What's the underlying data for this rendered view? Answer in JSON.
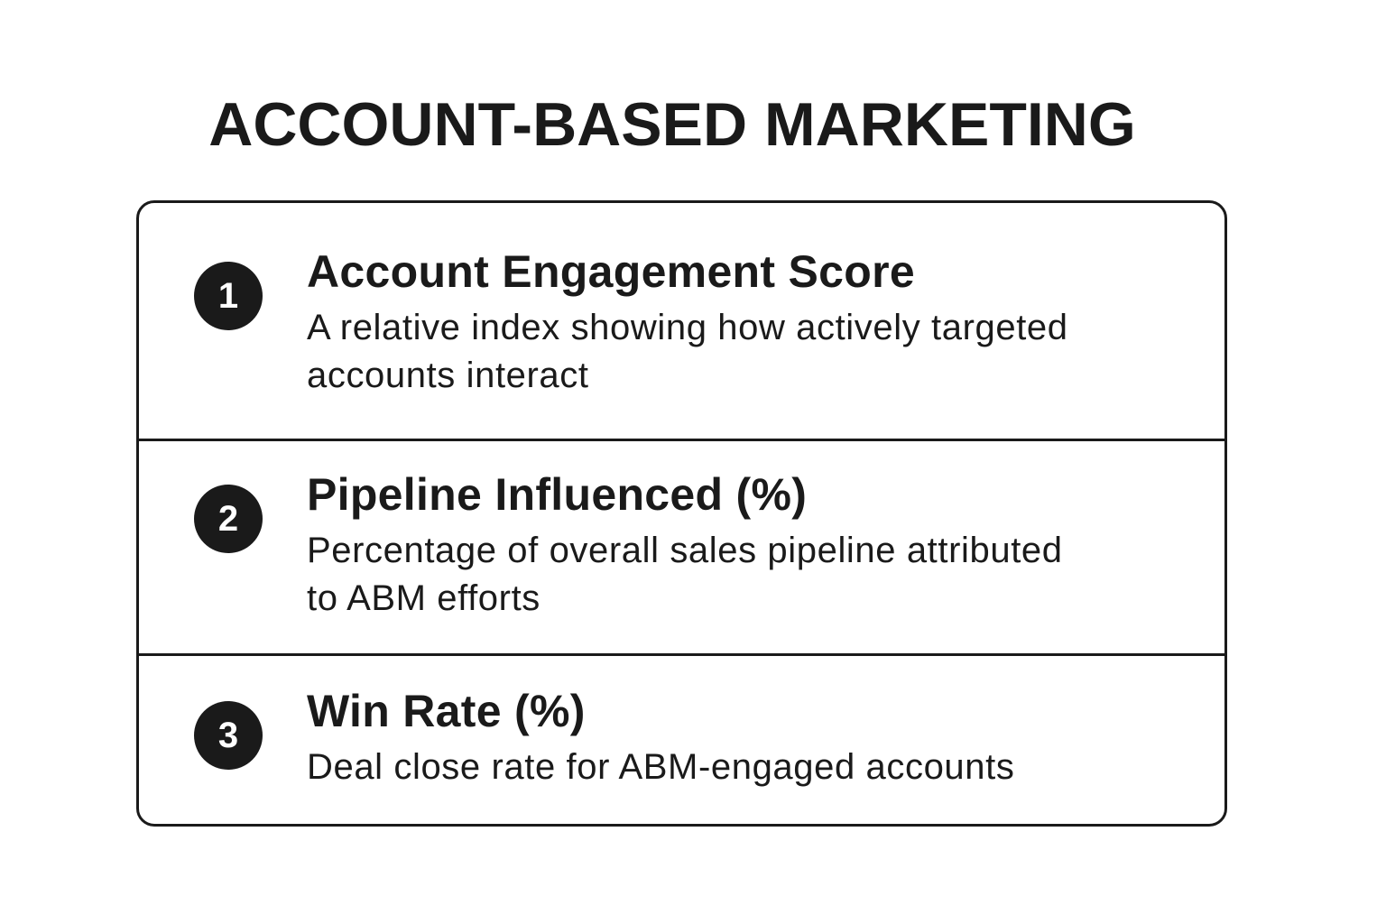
{
  "title": "ACCOUNT-BASED MARKETING",
  "colors": {
    "text": "#1a1a1a",
    "border": "#1a1a1a",
    "badge_bg": "#1a1a1a",
    "badge_text": "#ffffff",
    "background": "#ffffff"
  },
  "metrics": [
    {
      "number": "1",
      "heading": "Account Engagement Score",
      "description_lines": [
        "A relative index showing how actively targeted",
        "accounts interact"
      ]
    },
    {
      "number": "2",
      "heading": "Pipeline Influenced (%)",
      "description_lines": [
        "Percentage of overall sales pipeline attributed",
        "to ABM efforts"
      ]
    },
    {
      "number": "3",
      "heading": "Win Rate (%)",
      "description_lines": [
        "Deal close rate for ABM-engaged accounts"
      ]
    }
  ]
}
